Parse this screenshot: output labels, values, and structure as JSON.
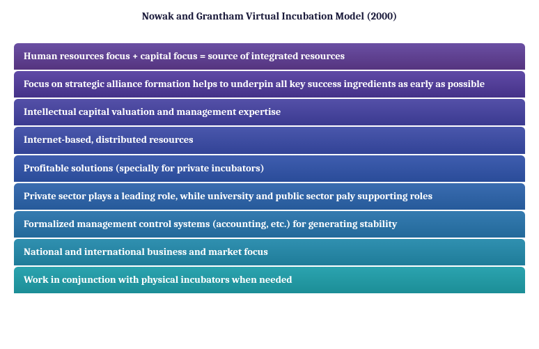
{
  "title": "Nowak and Grantham Virtual Incubation Model (2000)",
  "title_color": "#1a1a3a",
  "title_fontsize": 15,
  "background_color": "#ffffff",
  "infographic": {
    "type": "infographic",
    "bar_text_color": "#ffffff",
    "bar_font_weight": "bold",
    "bar_fontsize": 14.5,
    "bar_border_radius_top": 6,
    "bar_gap": 2,
    "items": [
      {
        "label": "Human resources focus + capital focus = source of integrated resources",
        "color_top": "#6a4fa3",
        "color_bottom": "#55347f"
      },
      {
        "label": "Focus on strategic alliance formation helps to underpin all key success ingredients as early as possible",
        "color_top": "#5f4aa6",
        "color_bottom": "#453288"
      },
      {
        "label": "Intellectual capital valuation and management expertise",
        "color_top": "#5450a8",
        "color_bottom": "#3b3a90"
      },
      {
        "label": "Internet-based, distributed resources",
        "color_top": "#4a57ac",
        "color_bottom": "#324396"
      },
      {
        "label": "Profitable solutions (specially for private incubators)",
        "color_top": "#3f5daf",
        "color_bottom": "#2a4c99"
      },
      {
        "label": "Private sector plays a leading role, while university and public sector paly supporting roles",
        "color_top": "#3a6cb0",
        "color_bottom": "#265a9a"
      },
      {
        "label": "Formalized management control systems (accounting, etc.) for generating stability",
        "color_top": "#357bb0",
        "color_bottom": "#23699a"
      },
      {
        "label": "National and international business and market focus",
        "color_top": "#3090b0",
        "color_bottom": "#1f7c99"
      },
      {
        "label": "Work in conjunction with physical incubators when needed",
        "color_top": "#2ba3af",
        "color_bottom": "#1c8e97"
      }
    ]
  }
}
